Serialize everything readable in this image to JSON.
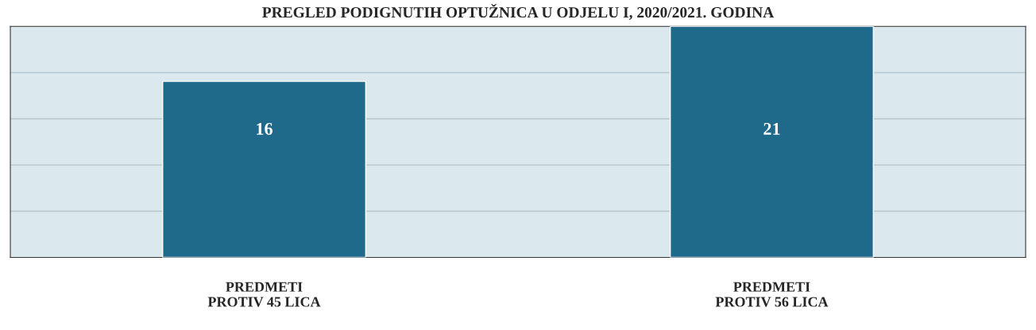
{
  "chart_data": {
    "type": "bar",
    "title": "PREGLED PODIGNUTIH OPTUŽNICA U ODJELU I, 2020/2021. GODINA",
    "categories": [
      "PREDMETI\nPROTIV 45 LICA",
      "PREDMETI\nPROTIV 56 LICA"
    ],
    "values": [
      16,
      21
    ],
    "color": "#1f6a8a",
    "data_labels": true,
    "grid": "y"
  }
}
